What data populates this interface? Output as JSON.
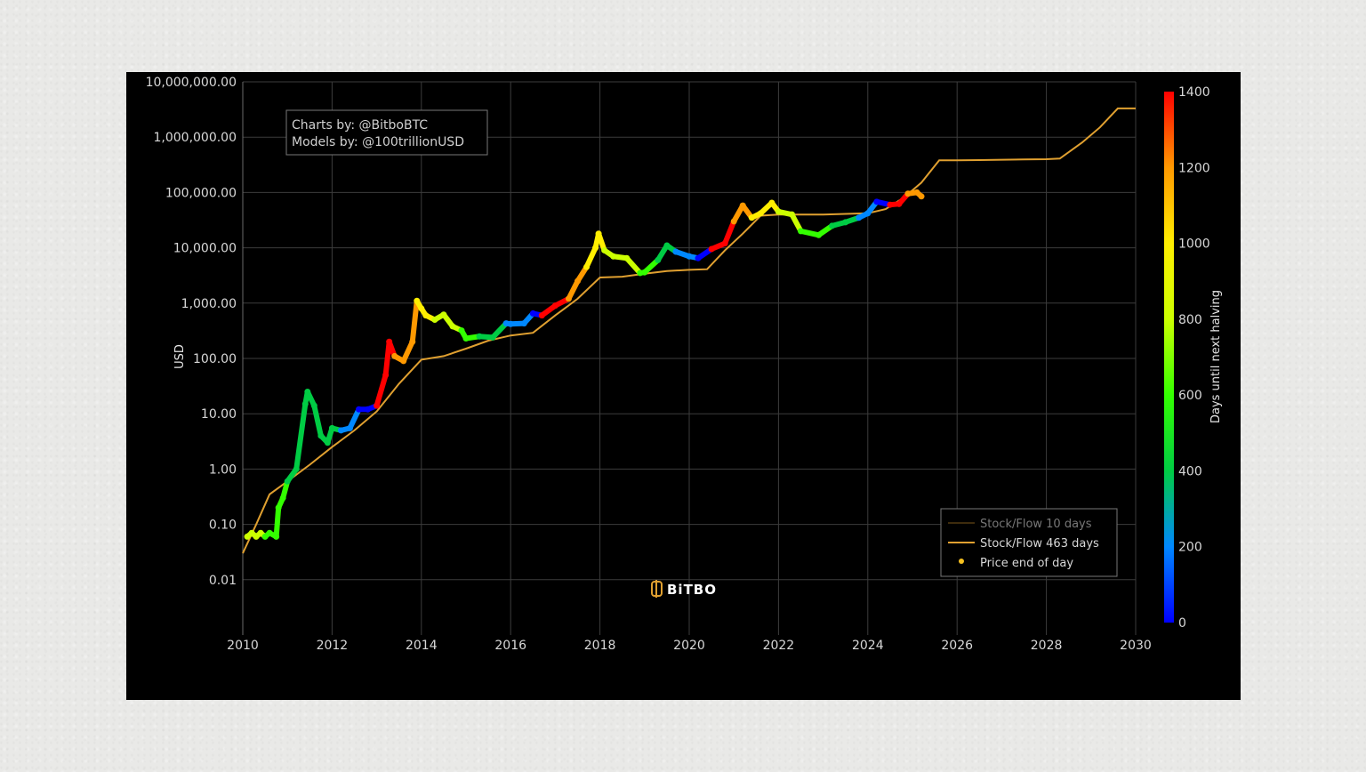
{
  "credits": {
    "line1": "Charts by: @BitboBTC",
    "line2": "Models by: @100trillionUSD"
  },
  "brand": "BiTBO",
  "chart_data": {
    "type": "scatter",
    "title": "",
    "xlabel": "",
    "ylabel": "USD",
    "yscale": "log",
    "xlim": [
      2010,
      2030
    ],
    "ylim": [
      0.001,
      10000000
    ],
    "x_ticks": [
      "2010",
      "2012",
      "2014",
      "2016",
      "2018",
      "2020",
      "2022",
      "2024",
      "2026",
      "2028",
      "2030"
    ],
    "y_ticks": [
      "10,000,000.00",
      "1,000,000.00",
      "100,000.00",
      "10,000.00",
      "1,000.00",
      "100.00",
      "10.00",
      "1.00",
      "0.10",
      "0.01"
    ],
    "grid": true,
    "legend": {
      "placement": "bottom-right",
      "entries": [
        "Stock/Flow 10 days",
        "Stock/Flow 463 days",
        "Price end of day"
      ]
    },
    "colorbar": {
      "title": "Days until next halving",
      "range": [
        0,
        1400
      ],
      "ticks": [
        "1400",
        "1200",
        "1000",
        "800",
        "600",
        "400",
        "200",
        "0"
      ],
      "colors": [
        "#0000ff",
        "#0088ff",
        "#00cc44",
        "#33ff00",
        "#ccff00",
        "#ffee00",
        "#ff9900",
        "#ff0000"
      ]
    },
    "series": [
      {
        "name": "Stock/Flow 463 days",
        "type": "line",
        "color": "#e0a030",
        "x": [
          2010.0,
          2010.3,
          2010.6,
          2011.0,
          2011.5,
          2012.0,
          2012.5,
          2013.0,
          2013.5,
          2014.0,
          2014.5,
          2015.0,
          2015.5,
          2016.0,
          2016.5,
          2017.0,
          2017.5,
          2018.0,
          2018.5,
          2019.0,
          2019.5,
          2020.0,
          2020.4,
          2020.8,
          2021.2,
          2021.6,
          2022.0,
          2022.5,
          2023.0,
          2023.5,
          2024.0,
          2024.4,
          2024.8,
          2025.2,
          2025.6,
          2026.0,
          2026.5,
          2027.0,
          2027.5,
          2028.0,
          2028.3,
          2028.8,
          2029.2,
          2029.6,
          2030.0
        ],
        "y": [
          0.03,
          0.1,
          0.35,
          0.6,
          1.2,
          2.5,
          5,
          11,
          35,
          95,
          110,
          150,
          210,
          260,
          290,
          600,
          1200,
          2900,
          3000,
          3400,
          3800,
          4000,
          4100,
          9000,
          18000,
          38000,
          40000,
          40000,
          40000,
          41000,
          42000,
          50000,
          80000,
          150000,
          380000,
          380000,
          385000,
          390000,
          395000,
          400000,
          410000,
          800000,
          1500000,
          3300000,
          3300000
        ]
      },
      {
        "name": "Price end of day",
        "type": "scatter",
        "x": [
          2010.1,
          2010.2,
          2010.3,
          2010.4,
          2010.5,
          2010.6,
          2010.75,
          2010.8,
          2010.9,
          2011.0,
          2011.2,
          2011.4,
          2011.45,
          2011.6,
          2011.75,
          2011.9,
          2012.0,
          2012.2,
          2012.4,
          2012.6,
          2012.8,
          2013.0,
          2013.2,
          2013.28,
          2013.4,
          2013.6,
          2013.8,
          2013.9,
          2014.0,
          2014.1,
          2014.3,
          2014.5,
          2014.7,
          2014.9,
          2015.0,
          2015.3,
          2015.6,
          2015.9,
          2016.0,
          2016.3,
          2016.5,
          2016.7,
          2017.0,
          2017.3,
          2017.5,
          2017.7,
          2017.9,
          2017.97,
          2018.1,
          2018.3,
          2018.6,
          2018.9,
          2019.0,
          2019.3,
          2019.5,
          2019.7,
          2020.0,
          2020.2,
          2020.5,
          2020.8,
          2021.0,
          2021.2,
          2021.4,
          2021.6,
          2021.85,
          2022.0,
          2022.3,
          2022.5,
          2022.9,
          2023.2,
          2023.5,
          2023.8,
          2024.0,
          2024.2,
          2024.5,
          2024.7,
          2024.9,
          2025.1,
          2025.2
        ],
        "y": [
          0.06,
          0.07,
          0.06,
          0.07,
          0.06,
          0.07,
          0.06,
          0.2,
          0.3,
          0.6,
          1.0,
          15.0,
          25.0,
          14.0,
          4.0,
          3.0,
          5.5,
          5.0,
          5.5,
          12.0,
          12.0,
          14.0,
          50.0,
          200.0,
          110.0,
          90.0,
          200.0,
          1100.0,
          800.0,
          600.0,
          500.0,
          620.0,
          380.0,
          320.0,
          230.0,
          250.0,
          240.0,
          430.0,
          420.0,
          430.0,
          650.0,
          600.0,
          900.0,
          1200.0,
          2500.0,
          4500.0,
          10000.0,
          18000.0,
          9000.0,
          7000.0,
          6500.0,
          3500.0,
          3600.0,
          6000.0,
          11000.0,
          8500.0,
          7000.0,
          6500.0,
          9500.0,
          12000.0,
          30000.0,
          58000.0,
          35000.0,
          42000.0,
          65000.0,
          45000.0,
          40000.0,
          20000.0,
          17000.0,
          25000.0,
          29000.0,
          35000.0,
          42000.0,
          68000.0,
          60000.0,
          62000.0,
          95000.0,
          100000.0,
          85000.0
        ],
        "days_until_halving": [
          800,
          750,
          720,
          700,
          650,
          600,
          560,
          540,
          520,
          480,
          450,
          430,
          420,
          400,
          380,
          350,
          300,
          200,
          150,
          80,
          20,
          1380,
          1320,
          1300,
          1250,
          1150,
          1100,
          1080,
          1000,
          950,
          850,
          800,
          700,
          600,
          560,
          460,
          350,
          250,
          200,
          100,
          10,
          1400,
          1300,
          1200,
          1100,
          1020,
          960,
          930,
          880,
          800,
          700,
          600,
          560,
          450,
          380,
          280,
          150,
          60,
          1400,
          1300,
          1220,
          1150,
          1080,
          1000,
          900,
          860,
          760,
          680,
          520,
          420,
          310,
          200,
          140,
          20,
          1380,
          1300,
          1230,
          1150,
          1100
        ]
      }
    ]
  }
}
